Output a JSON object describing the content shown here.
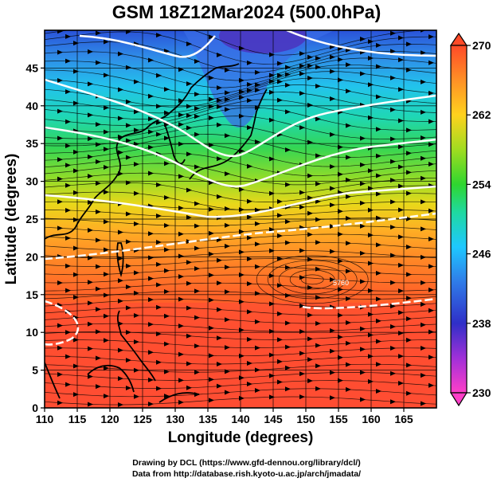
{
  "title": "GSM 18Z12Mar2024 (500.0hPa)",
  "xlabel": "Longitude (degrees)",
  "ylabel": "Latitude  (degrees)",
  "credits": {
    "line1": "Drawing by DCL (https://www.gfd-dennou.org/library/dcl/)",
    "line2": "Data from http://database.rish.kyoto-u.ac.jp/arch/jmadata/"
  },
  "map_data": {
    "type": "filled-contour-with-streamlines",
    "region": {
      "lon_range": [
        110,
        170
      ],
      "lat_range": [
        0,
        50
      ]
    },
    "x_ticks": [
      110,
      115,
      120,
      125,
      130,
      135,
      140,
      145,
      150,
      155,
      160,
      165
    ],
    "y_ticks": [
      0,
      5,
      10,
      15,
      20,
      25,
      30,
      35,
      40,
      45
    ],
    "grid": true,
    "colorbar": {
      "range": [
        230,
        270
      ],
      "ticks": [
        230,
        238,
        246,
        254,
        262,
        270
      ],
      "colors": [
        "#ff3fc8",
        "#2f2fc8",
        "#1ec8ff",
        "#2fd62f",
        "#ffd21e",
        "#ff5a28"
      ]
    },
    "contour_label": "5760"
  }
}
